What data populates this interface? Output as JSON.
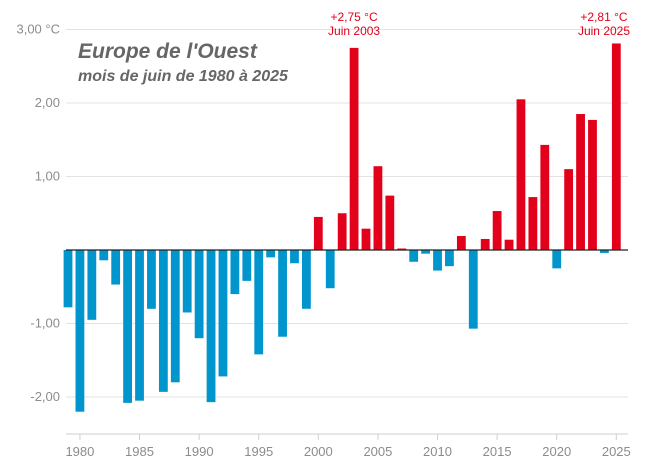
{
  "chart_data": {
    "type": "bar",
    "title": "Europe de l'Ouest",
    "subtitle": "mois de juin de 1980 à 2025",
    "xlabel": "",
    "ylabel": "",
    "ylim": [
      -2.35,
      3.15
    ],
    "grid": true,
    "colors": {
      "positive": "#e2001a",
      "negative": "#0095cc"
    },
    "y_ticks": [
      {
        "value": 3,
        "label": "3,00 °C"
      },
      {
        "value": 2,
        "label": "2,00"
      },
      {
        "value": 1,
        "label": "1,00"
      },
      {
        "value": -1,
        "label": "-1,00"
      },
      {
        "value": -2,
        "label": "-2,00"
      }
    ],
    "x_ticks": [
      1980,
      1985,
      1990,
      1995,
      2000,
      2005,
      2010,
      2015,
      2020,
      2025
    ],
    "categories": [
      1979,
      1980,
      1981,
      1982,
      1983,
      1984,
      1985,
      1986,
      1987,
      1988,
      1989,
      1990,
      1991,
      1992,
      1993,
      1994,
      1995,
      1996,
      1997,
      1998,
      1999,
      2000,
      2001,
      2002,
      2003,
      2004,
      2005,
      2006,
      2007,
      2008,
      2009,
      2010,
      2011,
      2012,
      2013,
      2014,
      2015,
      2016,
      2017,
      2018,
      2019,
      2020,
      2021,
      2022,
      2023,
      2024,
      2025
    ],
    "values": [
      -0.78,
      -2.2,
      -0.95,
      -0.14,
      -0.47,
      -2.08,
      -2.05,
      -0.8,
      -1.93,
      -1.8,
      -0.85,
      -1.2,
      -2.07,
      -1.72,
      -0.6,
      -0.42,
      -1.42,
      -0.1,
      -1.18,
      -0.18,
      -0.8,
      0.45,
      -0.52,
      0.5,
      2.75,
      0.29,
      1.14,
      0.74,
      0.02,
      -0.16,
      -0.05,
      -0.28,
      -0.22,
      0.19,
      -1.07,
      0.15,
      0.53,
      0.14,
      2.05,
      0.72,
      1.43,
      -0.25,
      1.1,
      1.85,
      1.77,
      -0.04,
      2.81
    ],
    "annotations": [
      {
        "year": 2003,
        "lines": [
          "+2,75 °C",
          "Juin 2003"
        ]
      },
      {
        "year": 2025,
        "lines": [
          "+2,81 °C",
          "Juin 2025"
        ]
      }
    ]
  }
}
